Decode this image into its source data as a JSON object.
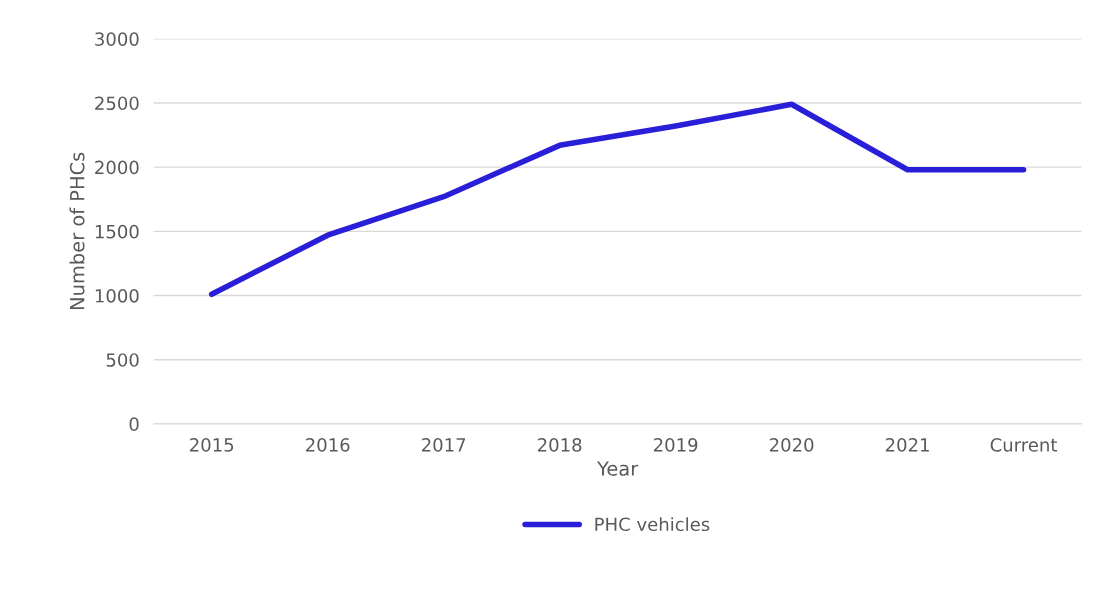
{
  "chart_data": {
    "type": "line",
    "xlabel": "Year",
    "ylabel": "Number of PHCs",
    "categories": [
      "2015",
      "2016",
      "2017",
      "2018",
      "2019",
      "2020",
      "2021",
      "Current"
    ],
    "series": [
      {
        "name": "PHC vehicles",
        "color": "#2a1fd8",
        "values": [
          1010,
          1470,
          1770,
          2170,
          2320,
          2490,
          1980,
          1980
        ]
      }
    ],
    "ylim": [
      0,
      3000
    ],
    "yticks": [
      0,
      500,
      1000,
      1500,
      2000,
      2500,
      3000
    ],
    "grid": "y",
    "legend": "bottom",
    "line_style": "solid",
    "marker": "none"
  }
}
